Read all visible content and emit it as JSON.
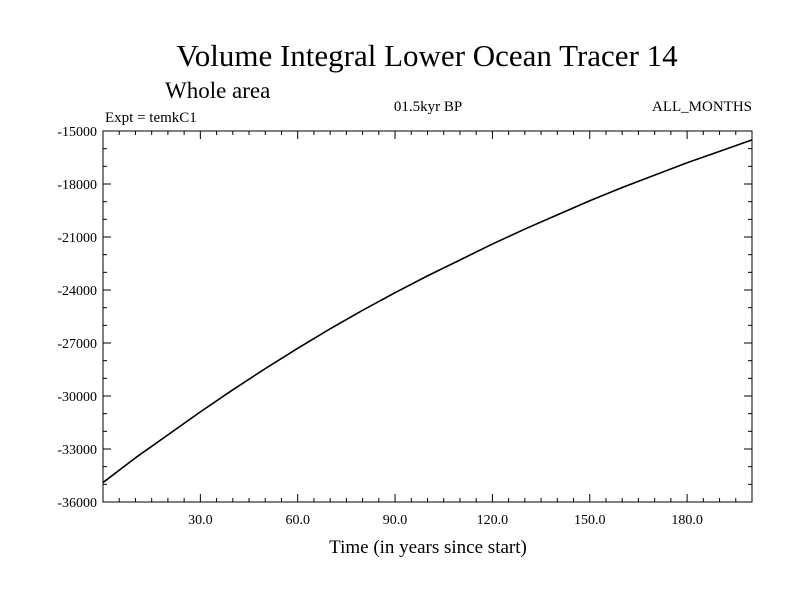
{
  "chart_data": {
    "type": "line",
    "title": "Volume Integral Lower Ocean Tracer 14",
    "subtitle": "Whole area",
    "experiment_label": "Expt = temkC1",
    "period_label": "01.5kyr BP",
    "months_label": "ALL_MONTHS",
    "xlabel": "Time (in years since start)",
    "ylabel": "",
    "xlim": [
      0,
      200
    ],
    "ylim": [
      -36000,
      -15000
    ],
    "xticks": [
      30,
      60,
      90,
      120,
      150,
      180
    ],
    "xtick_labels": [
      "30.0",
      "60.0",
      "90.0",
      "120.0",
      "150.0",
      "180.0"
    ],
    "yticks": [
      -36000,
      -33000,
      -30000,
      -27000,
      -24000,
      -21000,
      -18000,
      -15000
    ],
    "ytick_labels": [
      "-36000",
      "-33000",
      "-30000",
      "-27000",
      "-24000",
      "-21000",
      "-18000",
      "-15000"
    ],
    "series": [
      {
        "name": "temkC1",
        "color": "#000000",
        "x": [
          0,
          10,
          20,
          30,
          40,
          50,
          60,
          70,
          80,
          90,
          100,
          110,
          120,
          130,
          140,
          150,
          160,
          170,
          180,
          190,
          200
        ],
        "y": [
          -34900,
          -33500,
          -32200,
          -30900,
          -29650,
          -28450,
          -27300,
          -26200,
          -25150,
          -24150,
          -23200,
          -22300,
          -21400,
          -20550,
          -19750,
          -18950,
          -18200,
          -17500,
          -16800,
          -16150,
          -15500
        ]
      }
    ]
  }
}
